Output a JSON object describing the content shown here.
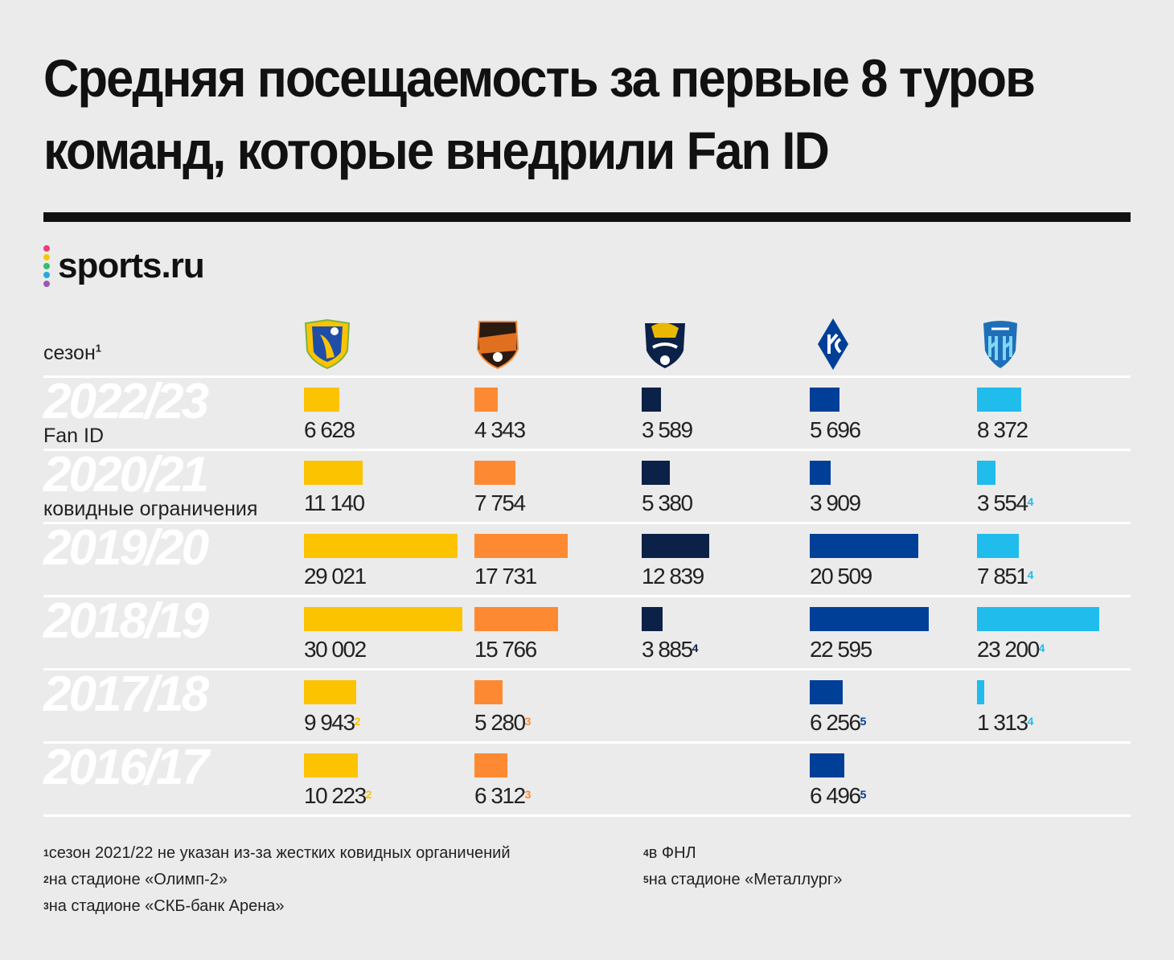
{
  "title": "Средняя посещаемость за первые 8 туров команд, которые внедрили Fan ID",
  "brand": {
    "name": "sports.ru",
    "dot_colors": [
      "#e9407a",
      "#f6c800",
      "#2fbf71",
      "#29a8e0",
      "#9b59b6"
    ]
  },
  "season_header": "сезон",
  "season_header_note": "1",
  "chart_data": {
    "type": "bar",
    "title": "Средняя посещаемость за первые 8 туров команд, которые внедрили Fan ID",
    "teams": [
      {
        "name": "Ростов",
        "logo_text": "ФК РОСТОВ",
        "color": "#fcc300"
      },
      {
        "name": "Урал",
        "logo_text": "УРАЛ",
        "color": "#fd8a32"
      },
      {
        "name": "Сочи",
        "logo_text": "Сочи",
        "color": "#0c2147"
      },
      {
        "name": "Крылья Советов",
        "logo_text": "КС",
        "color": "#003f98"
      },
      {
        "name": "Пари НН",
        "logo_text": "PARI НН",
        "color": "#1fbcec"
      }
    ],
    "categories": [
      "2022/23",
      "2020/21",
      "2019/20",
      "2018/19",
      "2017/18",
      "2016/17"
    ],
    "category_notes": [
      "Fan ID",
      "ковидные ограничения",
      "",
      "",
      "",
      ""
    ],
    "values": [
      [
        6628,
        4343,
        3589,
        5696,
        8372
      ],
      [
        11140,
        7754,
        5380,
        3909,
        3554
      ],
      [
        29021,
        17731,
        12839,
        20509,
        7851
      ],
      [
        30002,
        15766,
        3885,
        22595,
        23200
      ],
      [
        9943,
        5280,
        null,
        6256,
        1313
      ],
      [
        10223,
        6312,
        null,
        6496,
        null
      ]
    ],
    "labels": [
      [
        "6 628",
        "4 343",
        "3 589",
        "5 696",
        "8 372"
      ],
      [
        "11 140",
        "7 754",
        "5 380",
        "3 909",
        "3 554"
      ],
      [
        "29 021",
        "17 731",
        "12 839",
        "20 509",
        "7 851"
      ],
      [
        "30 002",
        "15 766",
        "3 885",
        "22 595",
        "23 200"
      ],
      [
        "9 943",
        "5 280",
        "",
        "6 256",
        "1 313"
      ],
      [
        "10 223",
        "6 312",
        "",
        "6 496",
        ""
      ]
    ],
    "label_notes": [
      [
        "",
        "",
        "",
        "",
        ""
      ],
      [
        "",
        "",
        "",
        "",
        "4"
      ],
      [
        "",
        "",
        "",
        "",
        "4"
      ],
      [
        "",
        "",
        "4",
        "",
        "4"
      ],
      [
        "2",
        "3",
        "",
        "5",
        "4"
      ],
      [
        "2",
        "3",
        "",
        "5",
        ""
      ]
    ],
    "xlim": [
      0,
      30002
    ]
  },
  "footnotes": [
    {
      "n": "1",
      "text": "сезон 2021/22 не указан из-за жестких ковидных органичений"
    },
    {
      "n": "2",
      "text": "на стадионе «Олимп-2»"
    },
    {
      "n": "3",
      "text": "на стадионе «СКБ-банк Арена»"
    },
    {
      "n": "4",
      "text": "в ФНЛ"
    },
    {
      "n": "5",
      "text": "на стадионе «Металлург»"
    }
  ]
}
